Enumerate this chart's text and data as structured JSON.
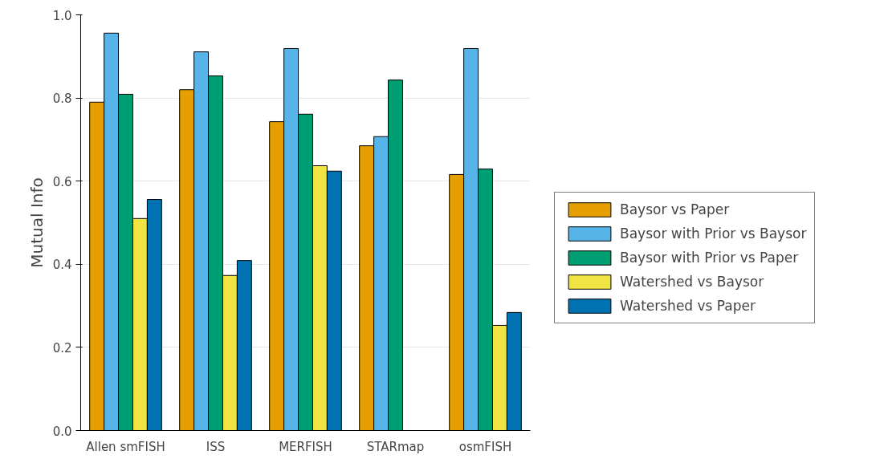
{
  "chart_data": {
    "type": "bar",
    "ylabel": "Mutual Info",
    "categories": [
      "Allen smFISH",
      "ISS",
      "MERFISH",
      "STARmap",
      "osmFISH"
    ],
    "series": [
      {
        "name": "Baysor vs Paper",
        "color": "#e69f00",
        "values": [
          0.79,
          0.82,
          0.743,
          0.685,
          0.616
        ]
      },
      {
        "name": "Baysor with Prior vs Baysor",
        "color": "#56b4e9",
        "values": [
          0.956,
          0.911,
          0.919,
          0.707,
          0.919
        ]
      },
      {
        "name": "Baysor with Prior vs Paper",
        "color": "#009e73",
        "values": [
          0.809,
          0.853,
          0.761,
          0.843,
          0.629
        ]
      },
      {
        "name": "Watershed vs Baysor",
        "color": "#f0e442",
        "values": [
          0.51,
          0.373,
          0.637,
          null,
          0.253
        ]
      },
      {
        "name": "Watershed vs Paper",
        "color": "#0072b2",
        "values": [
          0.556,
          0.409,
          0.624,
          null,
          0.284
        ]
      }
    ],
    "ylim": [
      0,
      1
    ],
    "yticks": [
      {
        "value": 0,
        "label": "0.0"
      },
      {
        "value": 0.2,
        "label": "0.2"
      },
      {
        "value": 0.4,
        "label": "0.4"
      },
      {
        "value": 0.6,
        "label": "0.6"
      },
      {
        "value": 0.8,
        "label": "0.8"
      },
      {
        "value": 1,
        "label": "1.0"
      }
    ],
    "grid": "y",
    "legend": "right"
  }
}
